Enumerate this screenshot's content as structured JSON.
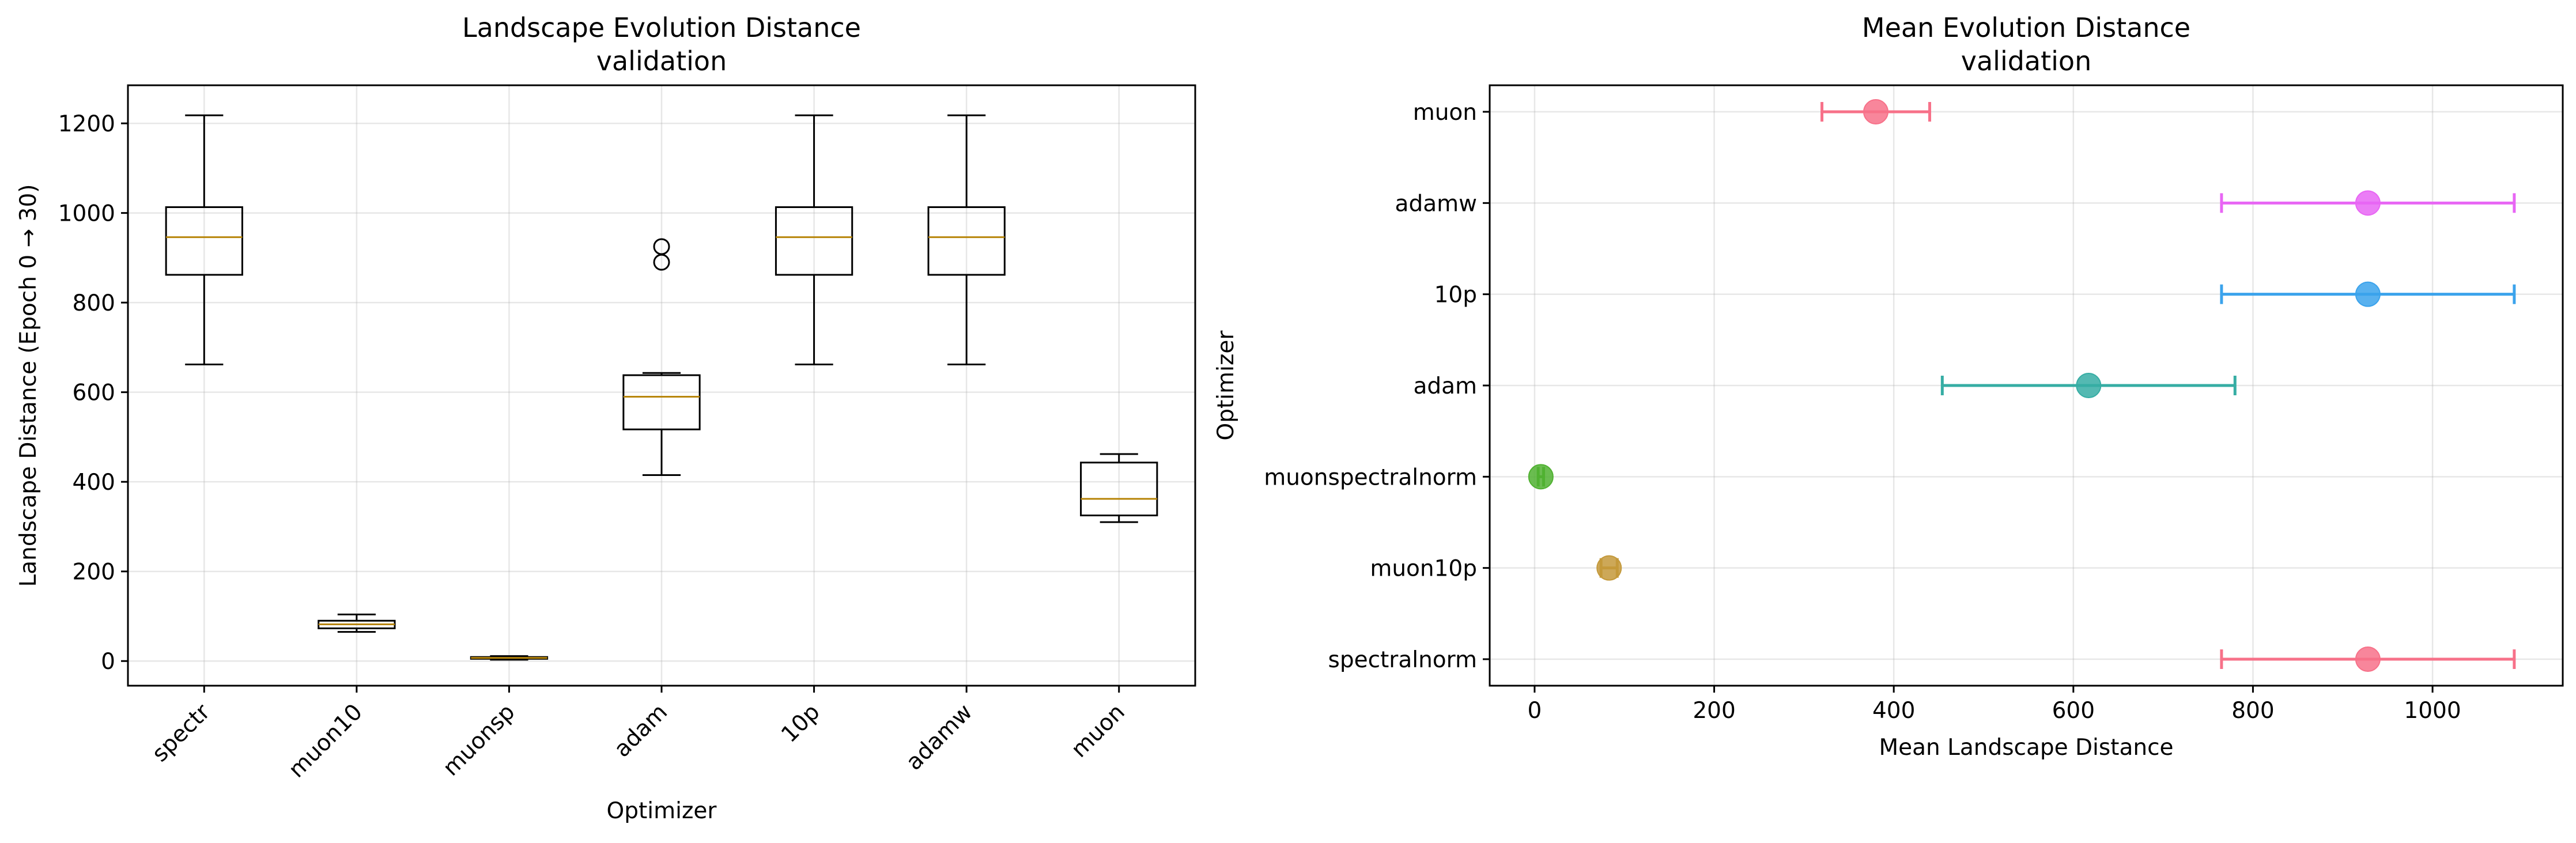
{
  "figure": {
    "background": "#ffffff"
  },
  "chart_data": [
    {
      "type": "box",
      "title": "Landscape Evolution Distance",
      "subtitle": "validation",
      "xlabel": "Optimizer",
      "ylabel": "Landscape Distance (Epoch 0 → 30)",
      "ylim": [
        -55,
        1285
      ],
      "yticks": [
        0,
        200,
        400,
        600,
        800,
        1000,
        1200
      ],
      "grid": true,
      "categories": [
        "spectr",
        "muon10",
        "muonsp",
        "adam",
        "10p",
        "adamw",
        "muon"
      ],
      "boxes": [
        {
          "whisker_low": 662,
          "q1": 862,
          "median": 946,
          "q3": 1013,
          "whisker_high": 1218,
          "outliers": []
        },
        {
          "whisker_low": 65,
          "q1": 73,
          "median": 82,
          "q3": 90,
          "whisker_high": 104,
          "outliers": []
        },
        {
          "whisker_low": 3,
          "q1": 5,
          "median": 7,
          "q3": 9,
          "whisker_high": 11,
          "outliers": []
        },
        {
          "whisker_low": 415,
          "q1": 517,
          "median": 590,
          "q3": 638,
          "whisker_high": 643,
          "outliers": [
            890,
            925
          ]
        },
        {
          "whisker_low": 662,
          "q1": 862,
          "median": 946,
          "q3": 1013,
          "whisker_high": 1218,
          "outliers": []
        },
        {
          "whisker_low": 662,
          "q1": 862,
          "median": 946,
          "q3": 1013,
          "whisker_high": 1218,
          "outliers": []
        },
        {
          "whisker_low": 310,
          "q1": 325,
          "median": 362,
          "q3": 443,
          "whisker_high": 462,
          "outliers": []
        }
      ],
      "colors": {
        "box": "#000000",
        "median": "#b8860b"
      }
    },
    {
      "type": "errorbar",
      "title": "Mean Evolution Distance",
      "subtitle": "validation",
      "xlabel": "Mean Landscape Distance",
      "ylabel": "Optimizer",
      "xlim": [
        -50,
        1145
      ],
      "xticks": [
        0,
        200,
        400,
        600,
        800,
        1000
      ],
      "grid": true,
      "categories": [
        "spectralnorm",
        "muon10p",
        "muonspectralnorm",
        "adam",
        "10p",
        "adamw",
        "muon"
      ],
      "means": [
        928,
        83,
        7,
        617,
        928,
        928,
        380
      ],
      "errors": [
        163,
        9,
        3,
        163,
        163,
        163,
        60
      ],
      "colors": [
        "#f77189",
        "#c4993b",
        "#50b131",
        "#36ada4",
        "#3ba3ec",
        "#e866f4",
        "#f77189"
      ]
    }
  ]
}
